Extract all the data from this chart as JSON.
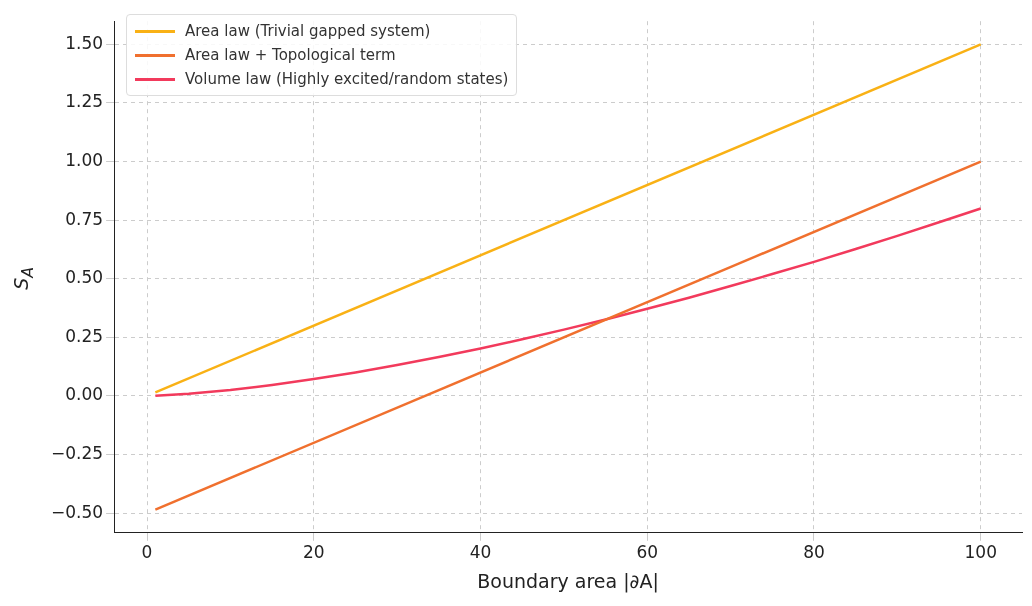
{
  "chart_data": {
    "type": "line",
    "xlabel": "Boundary area |∂A|",
    "ylabel": "S$_{A}$",
    "xlim": [
      -3.95,
      104.95
    ],
    "ylim": [
      -0.584,
      1.599
    ],
    "xticks": [
      0,
      20,
      40,
      60,
      80,
      100
    ],
    "yticks": [
      {
        "value": -0.5,
        "label": "−0.50"
      },
      {
        "value": -0.25,
        "label": "−0.25"
      },
      {
        "value": 0,
        "label": "0.00"
      },
      {
        "value": 0.25,
        "label": "0.25"
      },
      {
        "value": 0.5,
        "label": "0.50"
      },
      {
        "value": 0.75,
        "label": "0.75"
      },
      {
        "value": 1,
        "label": "1.00"
      },
      {
        "value": 1.25,
        "label": "1.25"
      },
      {
        "value": 1.5,
        "label": "1.50"
      }
    ],
    "grid": true,
    "legend": "top left",
    "line_style": "solid",
    "marker": "none",
    "series": [
      {
        "name": "Area law (Trivial gapped system)",
        "color": "#f9b115",
        "x": [
          1,
          100
        ],
        "values": [
          0.015,
          1.5
        ]
      },
      {
        "name": "Area law + Topological term",
        "color": "#f0702e",
        "x": [
          1,
          100
        ],
        "values": [
          -0.485,
          1.0
        ]
      },
      {
        "name": "Volume law (Highly excited/random states)",
        "color": "#f23a5c",
        "x": [
          1,
          5,
          10,
          15,
          20,
          25,
          30,
          35,
          40,
          45,
          50,
          55,
          60,
          65,
          70,
          75,
          80,
          85,
          90,
          95,
          100
        ],
        "values": [
          0.001,
          0.009,
          0.025,
          0.047,
          0.072,
          0.1,
          0.132,
          0.166,
          0.202,
          0.242,
          0.283,
          0.326,
          0.372,
          0.419,
          0.469,
          0.52,
          0.572,
          0.627,
          0.683,
          0.741,
          0.8
        ]
      }
    ]
  }
}
